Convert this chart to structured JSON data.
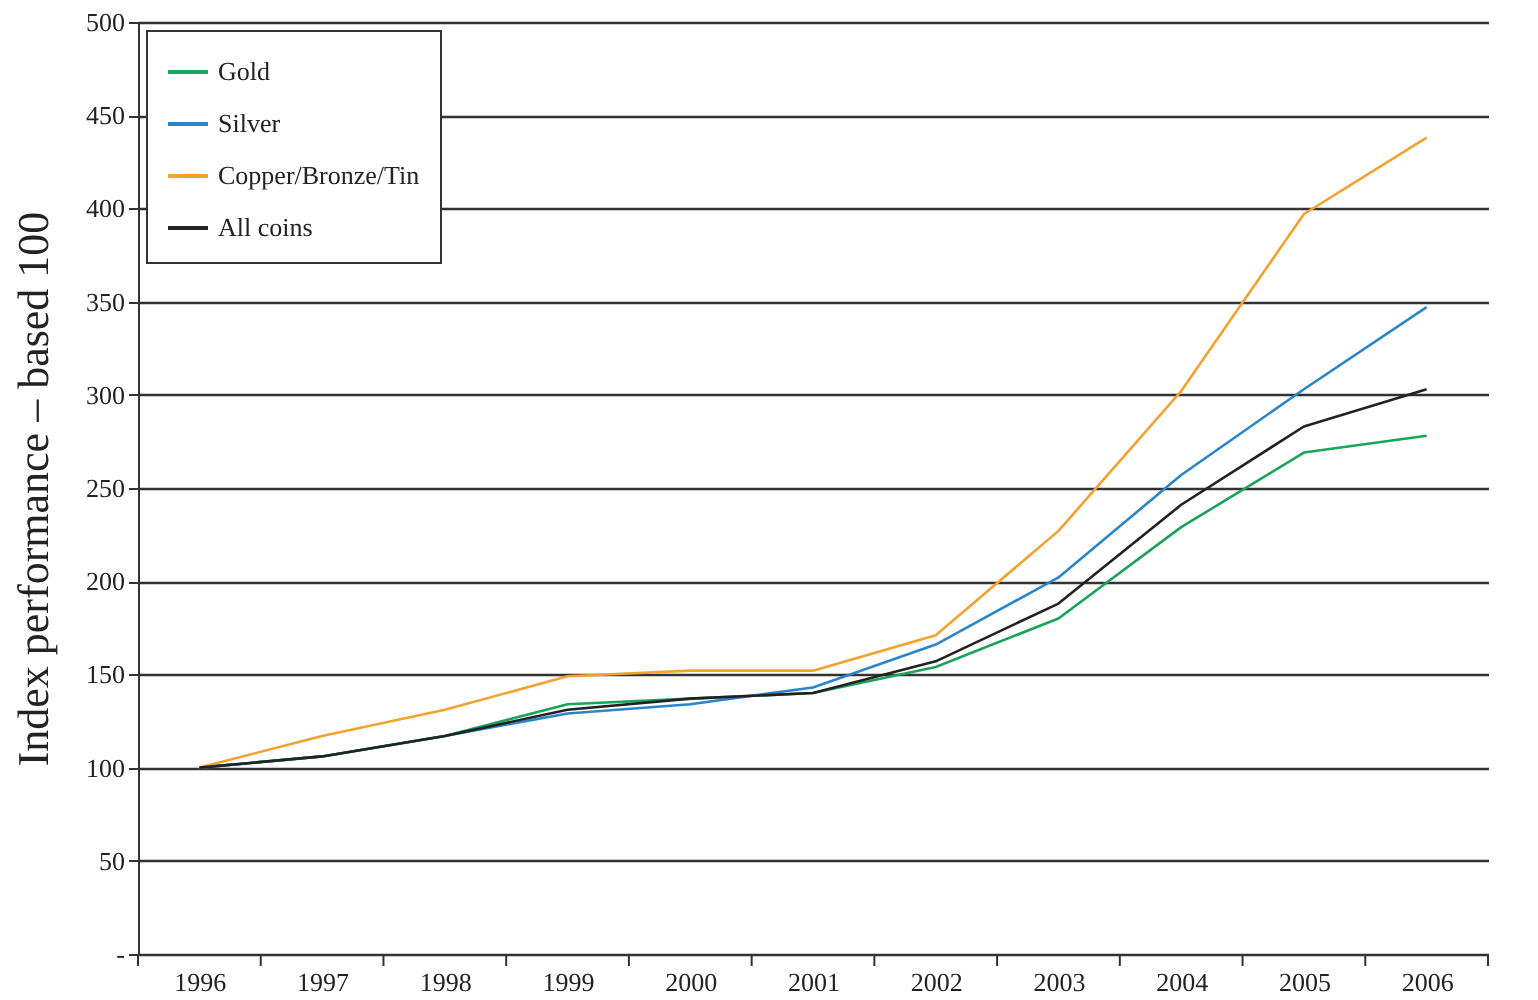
{
  "chart_data": {
    "type": "line",
    "ylabel": "Index performance – based 100",
    "categories": [
      "1996",
      "1997",
      "1998",
      "1999",
      "2000",
      "2001",
      "2002",
      "2003",
      "2004",
      "2005",
      "2006"
    ],
    "series": [
      {
        "name": "Gold",
        "color": "#1aa35a",
        "values": [
          100,
          106,
          117,
          134,
          137,
          140,
          154,
          180,
          229,
          269,
          278
        ]
      },
      {
        "name": "Silver",
        "color": "#2a86c8",
        "values": [
          100,
          106,
          117,
          129,
          134,
          143,
          166,
          202,
          257,
          303,
          347
        ]
      },
      {
        "name": "Copper/Bronze/Tin",
        "color": "#f3a230",
        "values": [
          100,
          117,
          131,
          149,
          152,
          152,
          171,
          227,
          302,
          397,
          438
        ]
      },
      {
        "name": "All coins",
        "color": "#222222",
        "values": [
          100,
          106,
          117,
          131,
          137,
          140,
          157,
          188,
          241,
          283,
          303
        ]
      }
    ],
    "ylim": [
      0,
      500
    ],
    "yticks": [
      {
        "value": 0,
        "label": "-"
      },
      50,
      100,
      150,
      200,
      250,
      300,
      350,
      400,
      450,
      500
    ],
    "grid": "y",
    "legend": "top left",
    "marker": "none",
    "line_style": "solid"
  }
}
